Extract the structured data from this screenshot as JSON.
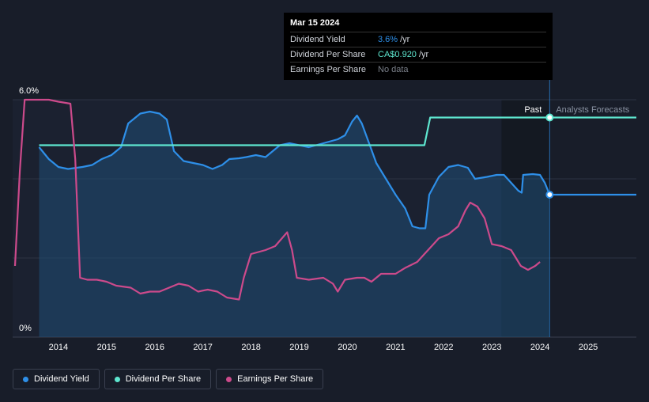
{
  "chart_data": {
    "type": "line",
    "y_axis": {
      "top_label": "6.0%",
      "bottom_label": "0%",
      "ylim": [
        0,
        6
      ]
    },
    "x_axis": {
      "ticks": [
        "2014",
        "2015",
        "2016",
        "2017",
        "2018",
        "2019",
        "2020",
        "2021",
        "2022",
        "2023",
        "2024",
        "2025"
      ],
      "xlim": [
        2013.05,
        2026.0
      ]
    },
    "region_labels": {
      "past": "Past",
      "forecast": "Analysts Forecasts"
    },
    "colors": {
      "dividend_yield": "#2e8fe8",
      "dividend_per_share": "#5ee6cf",
      "earnings_per_share": "#cc4a8b"
    },
    "series": [
      {
        "name": "Dividend Yield",
        "values": [
          [
            2013.6,
            4.8
          ],
          [
            2013.8,
            4.5
          ],
          [
            2014.0,
            4.3
          ],
          [
            2014.2,
            4.25
          ],
          [
            2014.5,
            4.3
          ],
          [
            2014.7,
            4.35
          ],
          [
            2014.9,
            4.5
          ],
          [
            2015.1,
            4.6
          ],
          [
            2015.3,
            4.8
          ],
          [
            2015.45,
            5.4
          ],
          [
            2015.7,
            5.65
          ],
          [
            2015.9,
            5.7
          ],
          [
            2016.1,
            5.65
          ],
          [
            2016.25,
            5.5
          ],
          [
            2016.4,
            4.7
          ],
          [
            2016.6,
            4.45
          ],
          [
            2016.8,
            4.4
          ],
          [
            2017.0,
            4.35
          ],
          [
            2017.2,
            4.25
          ],
          [
            2017.4,
            4.35
          ],
          [
            2017.55,
            4.5
          ],
          [
            2017.75,
            4.52
          ],
          [
            2017.9,
            4.55
          ],
          [
            2018.1,
            4.6
          ],
          [
            2018.3,
            4.55
          ],
          [
            2018.45,
            4.7
          ],
          [
            2018.6,
            4.85
          ],
          [
            2018.8,
            4.9
          ],
          [
            2019.0,
            4.85
          ],
          [
            2019.2,
            4.8
          ],
          [
            2019.5,
            4.9
          ],
          [
            2019.8,
            5.0
          ],
          [
            2019.95,
            5.1
          ],
          [
            2020.1,
            5.45
          ],
          [
            2020.2,
            5.6
          ],
          [
            2020.3,
            5.4
          ],
          [
            2020.45,
            4.9
          ],
          [
            2020.6,
            4.4
          ],
          [
            2020.8,
            4.0
          ],
          [
            2021.0,
            3.6
          ],
          [
            2021.2,
            3.25
          ],
          [
            2021.35,
            2.8
          ],
          [
            2021.5,
            2.75
          ],
          [
            2021.62,
            2.75
          ],
          [
            2021.7,
            3.6
          ],
          [
            2021.9,
            4.05
          ],
          [
            2022.1,
            4.3
          ],
          [
            2022.3,
            4.35
          ],
          [
            2022.5,
            4.28
          ],
          [
            2022.65,
            4.0
          ],
          [
            2022.9,
            4.05
          ],
          [
            2023.1,
            4.1
          ],
          [
            2023.25,
            4.1
          ],
          [
            2023.4,
            3.9
          ],
          [
            2023.55,
            3.7
          ],
          [
            2023.62,
            3.65
          ],
          [
            2023.65,
            4.1
          ],
          [
            2023.85,
            4.12
          ],
          [
            2024.0,
            4.1
          ],
          [
            2024.1,
            3.9
          ],
          [
            2024.2,
            3.6
          ],
          [
            2026.0,
            3.6
          ]
        ]
      },
      {
        "name": "Dividend Per Share",
        "values": [
          [
            2013.6,
            4.85
          ],
          [
            2021.6,
            4.85
          ],
          [
            2021.72,
            5.55
          ],
          [
            2026.0,
            5.55
          ]
        ]
      },
      {
        "name": "Earnings Per Share",
        "values": [
          [
            2013.1,
            1.8
          ],
          [
            2013.2,
            4.2
          ],
          [
            2013.3,
            6.0
          ],
          [
            2013.5,
            6.0
          ],
          [
            2013.8,
            6.0
          ],
          [
            2014.0,
            5.95
          ],
          [
            2014.25,
            5.9
          ],
          [
            2014.35,
            4.5
          ],
          [
            2014.45,
            1.5
          ],
          [
            2014.6,
            1.45
          ],
          [
            2014.8,
            1.45
          ],
          [
            2015.0,
            1.4
          ],
          [
            2015.2,
            1.3
          ],
          [
            2015.5,
            1.25
          ],
          [
            2015.7,
            1.1
          ],
          [
            2015.9,
            1.15
          ],
          [
            2016.1,
            1.15
          ],
          [
            2016.3,
            1.25
          ],
          [
            2016.5,
            1.35
          ],
          [
            2016.7,
            1.3
          ],
          [
            2016.9,
            1.15
          ],
          [
            2017.1,
            1.2
          ],
          [
            2017.3,
            1.15
          ],
          [
            2017.5,
            1.0
          ],
          [
            2017.75,
            0.95
          ],
          [
            2017.85,
            1.5
          ],
          [
            2018.0,
            2.1
          ],
          [
            2018.3,
            2.2
          ],
          [
            2018.5,
            2.3
          ],
          [
            2018.75,
            2.65
          ],
          [
            2018.85,
            2.2
          ],
          [
            2018.95,
            1.5
          ],
          [
            2019.2,
            1.45
          ],
          [
            2019.5,
            1.5
          ],
          [
            2019.7,
            1.35
          ],
          [
            2019.8,
            1.15
          ],
          [
            2019.95,
            1.45
          ],
          [
            2020.2,
            1.5
          ],
          [
            2020.35,
            1.5
          ],
          [
            2020.5,
            1.4
          ],
          [
            2020.7,
            1.6
          ],
          [
            2020.9,
            1.6
          ],
          [
            2021.0,
            1.6
          ],
          [
            2021.2,
            1.75
          ],
          [
            2021.45,
            1.9
          ],
          [
            2021.6,
            2.1
          ],
          [
            2021.75,
            2.3
          ],
          [
            2021.9,
            2.5
          ],
          [
            2022.1,
            2.6
          ],
          [
            2022.3,
            2.8
          ],
          [
            2022.45,
            3.2
          ],
          [
            2022.55,
            3.4
          ],
          [
            2022.7,
            3.3
          ],
          [
            2022.85,
            3.0
          ],
          [
            2023.0,
            2.35
          ],
          [
            2023.2,
            2.3
          ],
          [
            2023.4,
            2.2
          ],
          [
            2023.6,
            1.8
          ],
          [
            2023.75,
            1.7
          ],
          [
            2023.9,
            1.8
          ],
          [
            2024.0,
            1.9
          ]
        ]
      }
    ],
    "markers": [
      {
        "series": "Dividend Yield",
        "x": 2024.2,
        "y": 3.6
      },
      {
        "series": "Dividend Per Share",
        "x": 2024.2,
        "y": 5.55
      }
    ],
    "cursor_x": 2024.2,
    "forecast_shade_start": 2023.2,
    "legend": [
      {
        "label": "Dividend Yield",
        "color": "#2e8fe8"
      },
      {
        "label": "Dividend Per Share",
        "color": "#5ee6cf"
      },
      {
        "label": "Earnings Per Share",
        "color": "#cc4a8b"
      }
    ]
  },
  "tooltip": {
    "date": "Mar 15 2024",
    "rows": [
      {
        "label": "Dividend Yield",
        "value": "3.6%",
        "unit": "/yr",
        "color": "#2e8fe8"
      },
      {
        "label": "Dividend Per Share",
        "value": "CA$0.920",
        "unit": "/yr",
        "color": "#5ee6cf"
      },
      {
        "label": "Earnings Per Share",
        "value": "No data",
        "unit": "",
        "color": "#7b808a"
      }
    ]
  }
}
